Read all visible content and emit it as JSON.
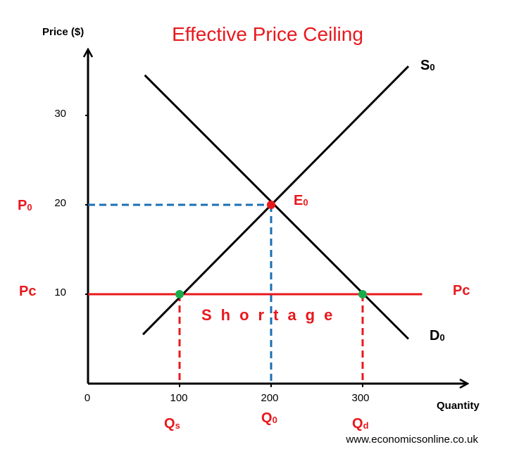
{
  "chart_data": {
    "type": "line",
    "title": "Effective Price Ceiling",
    "xlabel": "Quantity",
    "ylabel": "Price ($)",
    "xlim": [
      0,
      400
    ],
    "ylim": [
      0,
      40
    ],
    "x_ticks": [
      "0",
      "100",
      "200",
      "300"
    ],
    "y_ticks": [
      "10",
      "20",
      "30"
    ],
    "series": [
      {
        "name": "S",
        "subscript": "0",
        "x": [
          60,
          350
        ],
        "y": [
          5.5,
          35.5
        ],
        "color": "#000000"
      },
      {
        "name": "D",
        "subscript": "0",
        "x": [
          62,
          350
        ],
        "y": [
          34.5,
          5
        ],
        "color": "#000000"
      }
    ],
    "price_ceiling": {
      "y": 10,
      "x_range": [
        0,
        365
      ],
      "left_label": "Pc",
      "right_label": "Pc",
      "color": "#e8181d"
    },
    "equilibrium": {
      "x": 200,
      "y": 20,
      "label": "E",
      "subscript": "0",
      "price_label": "P",
      "price_subscript": "0",
      "quantity_label": "Q",
      "quantity_subscript": "0",
      "color": "#e8181d",
      "guide_color": "#1a6fb5"
    },
    "quantity_supplied": {
      "x": 100,
      "y": 10,
      "label": "Q",
      "subscript": "s",
      "color": "#1aab4a"
    },
    "quantity_demanded": {
      "x": 300,
      "y": 10,
      "label": "Q",
      "subscript": "d",
      "color": "#1aab4a"
    },
    "annotation": "Shortage",
    "source": "www.economicsonline.co.uk"
  }
}
